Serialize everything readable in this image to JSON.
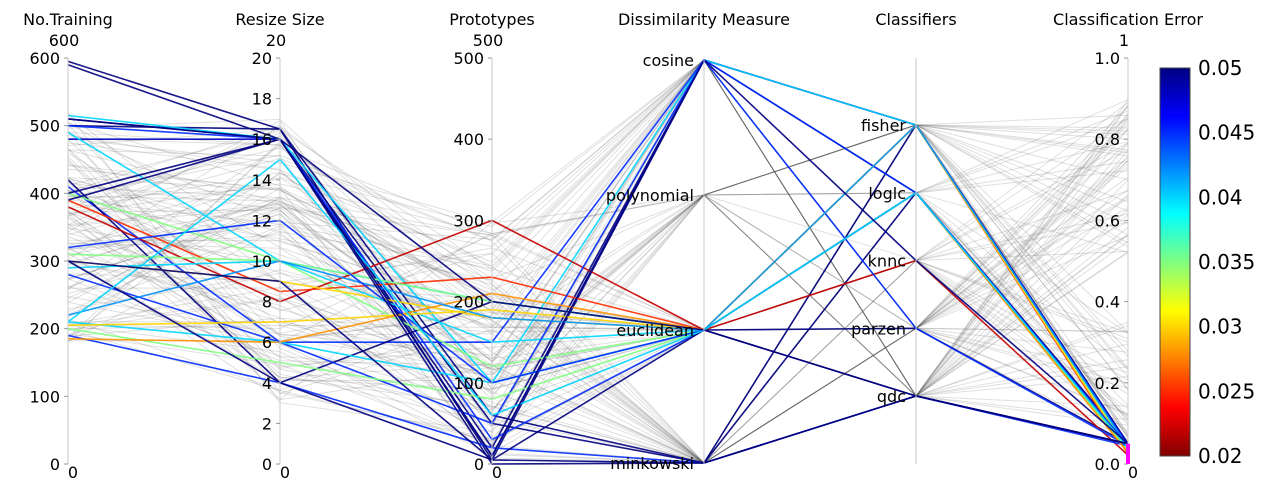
{
  "chart_data": {
    "type": "parallel_coordinates",
    "title": "",
    "axes": [
      {
        "name": "No.Training",
        "min": 0,
        "max": 600,
        "max_label": "600",
        "min_label": "0",
        "ticks": [
          0,
          100,
          200,
          300,
          400,
          500,
          600
        ]
      },
      {
        "name": "Resize Size",
        "min": 0,
        "max": 20,
        "max_label": "20",
        "min_label": "0",
        "ticks": [
          0,
          2,
          4,
          6,
          8,
          10,
          12,
          14,
          16,
          18,
          20
        ]
      },
      {
        "name": "Prototypes",
        "min": 0,
        "max": 500,
        "max_label": "500",
        "min_label": "0",
        "ticks": [
          0,
          100,
          200,
          300,
          400,
          500
        ]
      },
      {
        "name": "Dissimilarity Measure",
        "type": "categorical",
        "categories": [
          "cosine",
          "polynomial",
          "euclidean",
          "minkowski"
        ]
      },
      {
        "name": "Classifiers",
        "type": "categorical",
        "categories": [
          "fisher",
          "loglc",
          "knnc",
          "parzen",
          "qdc"
        ]
      },
      {
        "name": "Classification Error",
        "min": 0,
        "max": 1,
        "max_label": "1",
        "min_label": "0",
        "ticks": [
          "0.0",
          "0.2",
          "0.4",
          "0.6",
          "0.8",
          "1.0"
        ]
      }
    ],
    "colorbar": {
      "min": 0.02,
      "max": 0.05,
      "labels": [
        "0.02",
        "0.025",
        "0.03",
        "0.035",
        "0.04",
        "0.045",
        "0.05"
      ],
      "colors": [
        "#800000",
        "#ff0000",
        "#ff8000",
        "#ffff00",
        "#80ff80",
        "#00ffff",
        "#0080ff",
        "#0000ff",
        "#000080"
      ]
    },
    "filtered_line_color": "#555555",
    "brush_color": "#ff00ff",
    "brush_range": [
      0,
      0.05
    ],
    "highlighted_lines": [
      [
        595,
        16.5,
        60,
        3,
        0,
        0.05
      ],
      [
        590,
        16,
        50,
        3,
        1,
        0.05
      ],
      [
        510,
        16,
        20,
        0,
        0,
        0.05
      ],
      [
        500,
        16.5,
        5,
        0,
        1,
        0.05
      ],
      [
        480,
        16,
        10,
        0,
        0,
        0.048
      ],
      [
        500,
        16,
        30,
        2,
        0,
        0.045
      ],
      [
        515,
        16,
        100,
        0,
        0,
        0.04
      ],
      [
        490,
        10,
        200,
        2,
        1,
        0.04
      ],
      [
        410,
        6,
        150,
        0,
        1,
        0.045
      ],
      [
        420,
        4,
        200,
        2,
        3,
        0.05
      ],
      [
        400,
        10,
        120,
        2,
        1,
        0.035
      ],
      [
        380,
        8,
        300,
        2,
        2,
        0.022
      ],
      [
        390,
        8.5,
        230,
        2,
        0,
        0.025
      ],
      [
        310,
        10,
        200,
        2,
        0,
        0.035
      ],
      [
        300,
        9,
        180,
        2,
        1,
        0.03
      ],
      [
        290,
        10,
        150,
        2,
        1,
        0.04
      ],
      [
        280,
        6,
        50,
        0,
        3,
        0.045
      ],
      [
        210,
        6,
        100,
        2,
        1,
        0.04
      ],
      [
        205,
        7,
        190,
        2,
        0,
        0.03
      ],
      [
        200,
        5,
        80,
        2,
        1,
        0.035
      ],
      [
        190,
        4,
        20,
        3,
        4,
        0.045
      ],
      [
        185,
        6,
        210,
        2,
        1,
        0.028
      ],
      [
        220,
        10,
        180,
        2,
        0,
        0.042
      ],
      [
        300,
        4,
        5,
        2,
        4,
        0.05
      ],
      [
        320,
        12,
        100,
        2,
        1,
        0.045
      ],
      [
        400,
        16,
        0,
        3,
        4,
        0.05
      ],
      [
        210,
        15,
        60,
        2,
        1,
        0.04
      ],
      [
        390,
        16,
        200,
        2,
        4,
        0.05
      ],
      [
        510,
        16,
        10,
        0,
        2,
        0.05
      ],
      [
        300,
        9,
        5,
        3,
        4,
        0.05
      ]
    ],
    "line_value_range": [
      0.02,
      0.05
    ],
    "background_lines": 120
  }
}
